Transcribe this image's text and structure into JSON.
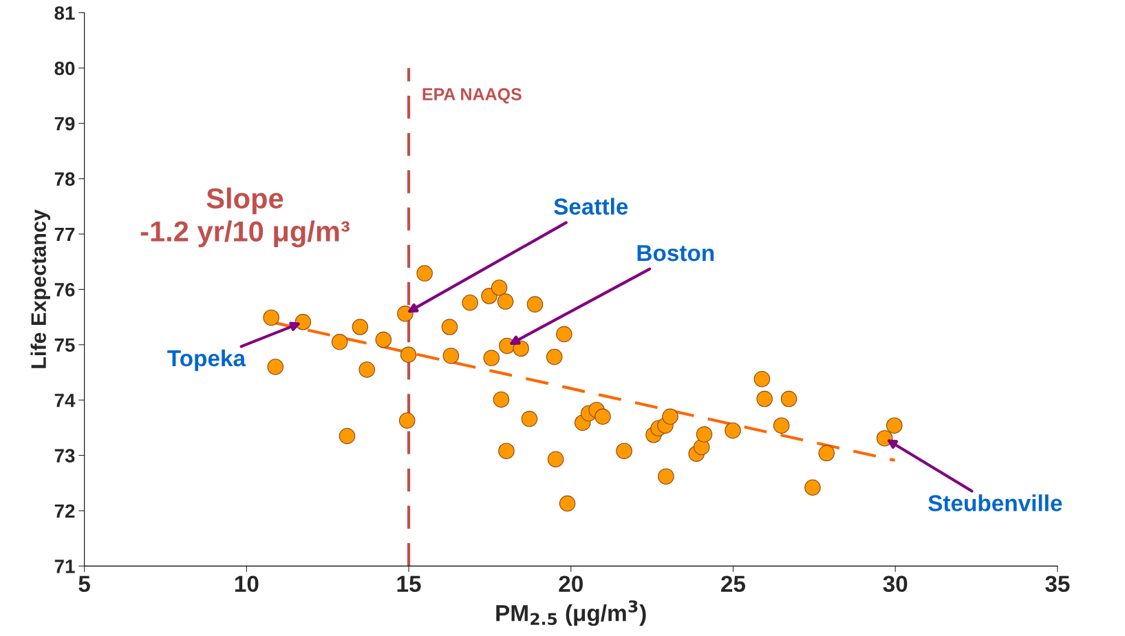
{
  "chart_data": {
    "type": "scatter",
    "xlabel": "PM$_{2.5}$ (μg/m$^{3}$)",
    "ylabel": "Life Expectancy",
    "xlim": [
      5,
      35
    ],
    "xticks": [
      5,
      10,
      15,
      20,
      25,
      30,
      35
    ],
    "ylim": [
      71,
      81
    ],
    "yticks": [
      71,
      72,
      73,
      74,
      75,
      76,
      77,
      78,
      79,
      80,
      81
    ],
    "grid": false,
    "legend": false,
    "series": [
      {
        "color": "#ff9900",
        "marker": "circle",
        "x": [
          10.76,
          10.89,
          11.74,
          12.87,
          13.1,
          13.5,
          13.71,
          14.22,
          14.89,
          14.99,
          14.95,
          15.49,
          16.26,
          16.3,
          16.89,
          17.48,
          17.55,
          17.79,
          17.85,
          17.98,
          18.01,
          18.03,
          18.46,
          18.72,
          18.89,
          19.49,
          19.53,
          19.79,
          19.89,
          20.36,
          20.55,
          20.79,
          20.98,
          21.64,
          22.55,
          22.7,
          22.91,
          22.93,
          23.06,
          23.87,
          24.03,
          24.11,
          24.99,
          25.89,
          25.97,
          26.49,
          26.72,
          27.45,
          27.88,
          29.67,
          29.97
        ],
        "values": [
          75.49,
          74.6,
          75.41,
          75.05,
          73.35,
          75.32,
          74.55,
          75.09,
          75.56,
          74.82,
          73.63,
          76.29,
          75.32,
          74.8,
          75.76,
          75.88,
          74.76,
          76.03,
          74.01,
          75.78,
          73.08,
          74.98,
          74.93,
          73.66,
          75.73,
          74.78,
          72.93,
          75.19,
          72.13,
          73.59,
          73.76,
          73.82,
          73.7,
          73.08,
          73.37,
          73.49,
          73.54,
          72.62,
          73.7,
          73.03,
          73.15,
          73.38,
          73.45,
          74.38,
          74.02,
          73.54,
          74.02,
          72.42,
          73.04,
          73.31,
          73.54
        ]
      },
      {
        "type": "line",
        "color": "#ff6600",
        "line_style": "dashed",
        "x": [
          10.76,
          29.99
        ],
        "values": [
          75.41,
          72.91
        ]
      }
    ],
    "ref_lines": [
      {
        "axis": "x",
        "value": 15,
        "label": "EPA NAAQS",
        "color": "#c0504d",
        "line_style": "dashed"
      }
    ],
    "annotations": [
      {
        "text": "Slope\n-1.2 yr/10 μg/m³"
      },
      {
        "text": "Seattle",
        "x": 14.89,
        "y": 75.56
      },
      {
        "text": "Boston",
        "x": 18.03,
        "y": 74.98
      },
      {
        "text": "Topeka",
        "x": 11.74,
        "y": 75.41
      },
      {
        "text": "Steubenville",
        "x": 29.67,
        "y": 73.31
      }
    ]
  }
}
